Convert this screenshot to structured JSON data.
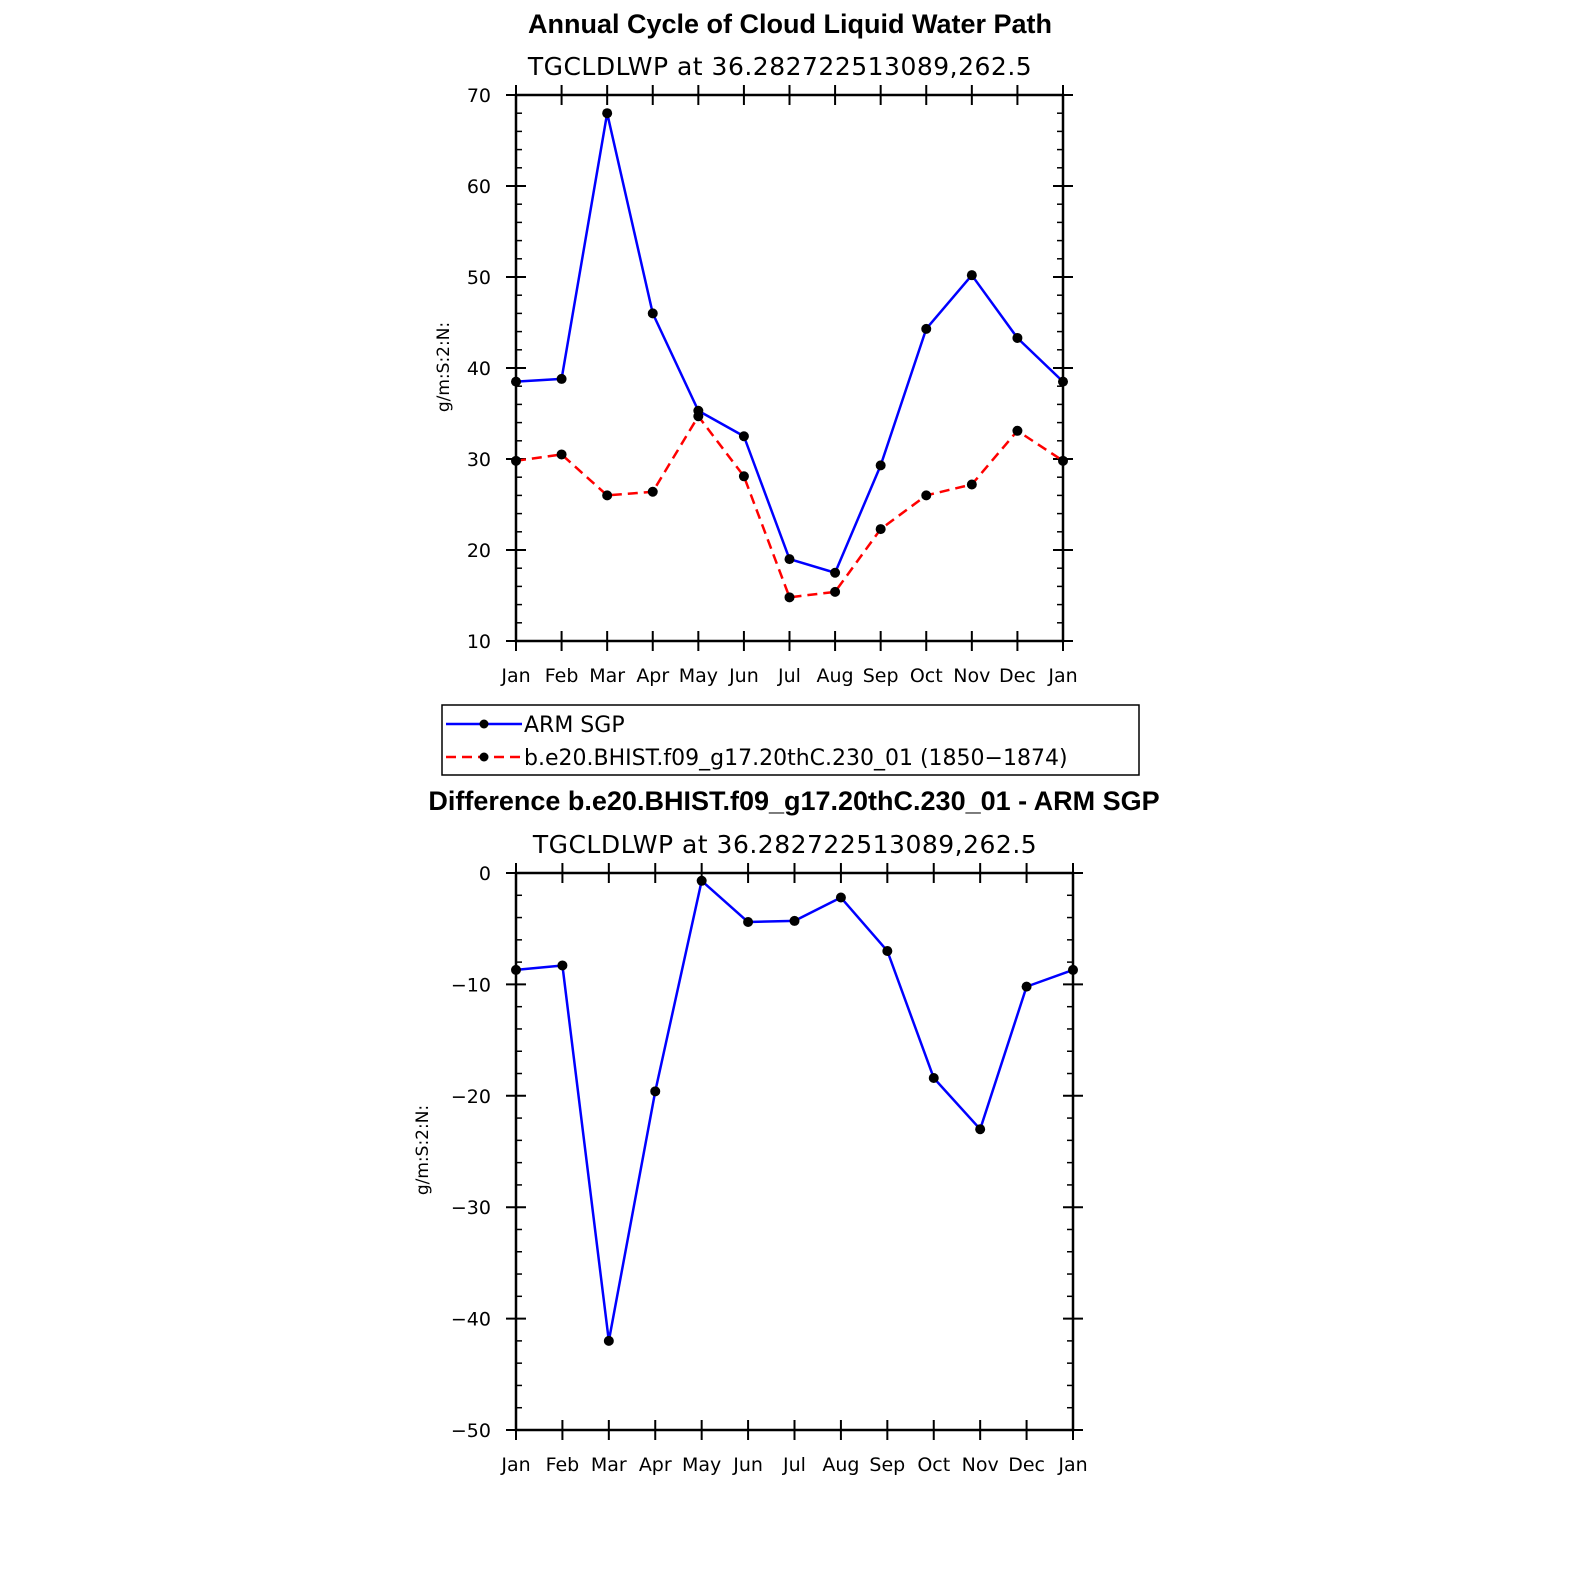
{
  "chart_data": [
    {
      "type": "line",
      "title": "Annual Cycle of Cloud Liquid Water Path",
      "subtitle": "TGCLDLWP at 36.282722513089,262.5",
      "xlabel": "",
      "ylabel": "g/m:S:2:N:",
      "categories": [
        "Jan",
        "Feb",
        "Mar",
        "Apr",
        "May",
        "Jun",
        "Jul",
        "Aug",
        "Sep",
        "Oct",
        "Nov",
        "Dec",
        "Jan"
      ],
      "ylim": [
        10,
        70
      ],
      "yticks": [
        10,
        20,
        30,
        40,
        50,
        60,
        70
      ],
      "series": [
        {
          "name": "ARM SGP",
          "color": "#0000ff",
          "dash": "solid",
          "values": [
            38.5,
            38.8,
            68.0,
            46.0,
            35.3,
            32.5,
            19.0,
            17.5,
            29.3,
            44.3,
            50.2,
            43.3,
            38.5
          ]
        },
        {
          "name": "b.e20.BHIST.f09_g17.20thC.230_01 (1850−1874)",
          "color": "#ff0000",
          "dash": "dashed",
          "values": [
            29.8,
            30.5,
            26.0,
            26.4,
            34.7,
            28.1,
            14.8,
            15.4,
            22.3,
            26.0,
            27.2,
            33.1,
            29.8
          ]
        }
      ],
      "legend": {
        "entries": [
          "ARM SGP",
          "b.e20.BHIST.f09_g17.20thC.230_01 (1850−1874)"
        ],
        "placement": "below"
      }
    },
    {
      "type": "line",
      "title": "Difference b.e20.BHIST.f09_g17.20thC.230_01 - ARM SGP",
      "subtitle": "TGCLDLWP at 36.282722513089,262.5",
      "xlabel": "",
      "ylabel": "g/m:S:2:N:",
      "categories": [
        "Jan",
        "Feb",
        "Mar",
        "Apr",
        "May",
        "Jun",
        "Jul",
        "Aug",
        "Sep",
        "Oct",
        "Nov",
        "Dec",
        "Jan"
      ],
      "ylim": [
        -50,
        0
      ],
      "yticks": [
        -50,
        -40,
        -30,
        -20,
        -10,
        0
      ],
      "series": [
        {
          "name": "Difference",
          "color": "#0000ff",
          "dash": "solid",
          "values": [
            -8.7,
            -8.3,
            -42.0,
            -19.6,
            -0.7,
            -4.4,
            -4.3,
            -2.2,
            -7.0,
            -18.4,
            -23.0,
            -10.2,
            -8.7
          ]
        }
      ]
    }
  ]
}
